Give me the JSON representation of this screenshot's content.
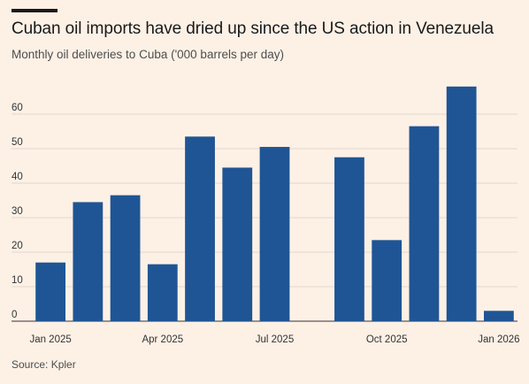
{
  "title": "Cuban oil imports have dried up since the US action in Venezuela",
  "subtitle": "Monthly oil deliveries to Cuba ('000 barrels per day)",
  "source": "Source: Kpler",
  "colors": {
    "background": "#fdf1e6",
    "bar": "#1f5594",
    "grid": "#e3d8cd",
    "axis": "#333333"
  },
  "chart_data": {
    "type": "bar",
    "title": "Cuban oil imports have dried up since the US action in Venezuela",
    "subtitle": "Monthly oil deliveries to Cuba ('000 barrels per day)",
    "xlabel": "",
    "ylabel": "",
    "ylim": [
      0,
      70
    ],
    "yticks": [
      0,
      10,
      20,
      30,
      40,
      50,
      60
    ],
    "grid": true,
    "categories": [
      "Jan 2025",
      "Feb 2025",
      "Mar 2025",
      "Apr 2025",
      "May 2025",
      "Jun 2025",
      "Jul 2025",
      "Aug 2025",
      "Sep 2025",
      "Oct 2025",
      "Nov 2025",
      "Dec 2025",
      "Jan 2026"
    ],
    "values": [
      17,
      34.5,
      36.5,
      16.5,
      53.5,
      44.5,
      50.5,
      0,
      47.5,
      23.5,
      56.5,
      68,
      3
    ],
    "xtick_labels": [
      {
        "index": 0,
        "label": "Jan 2025"
      },
      {
        "index": 3,
        "label": "Apr 2025"
      },
      {
        "index": 6,
        "label": "Jul 2025"
      },
      {
        "index": 9,
        "label": "Oct 2025"
      },
      {
        "index": 12,
        "label": "Jan 2026"
      }
    ]
  }
}
